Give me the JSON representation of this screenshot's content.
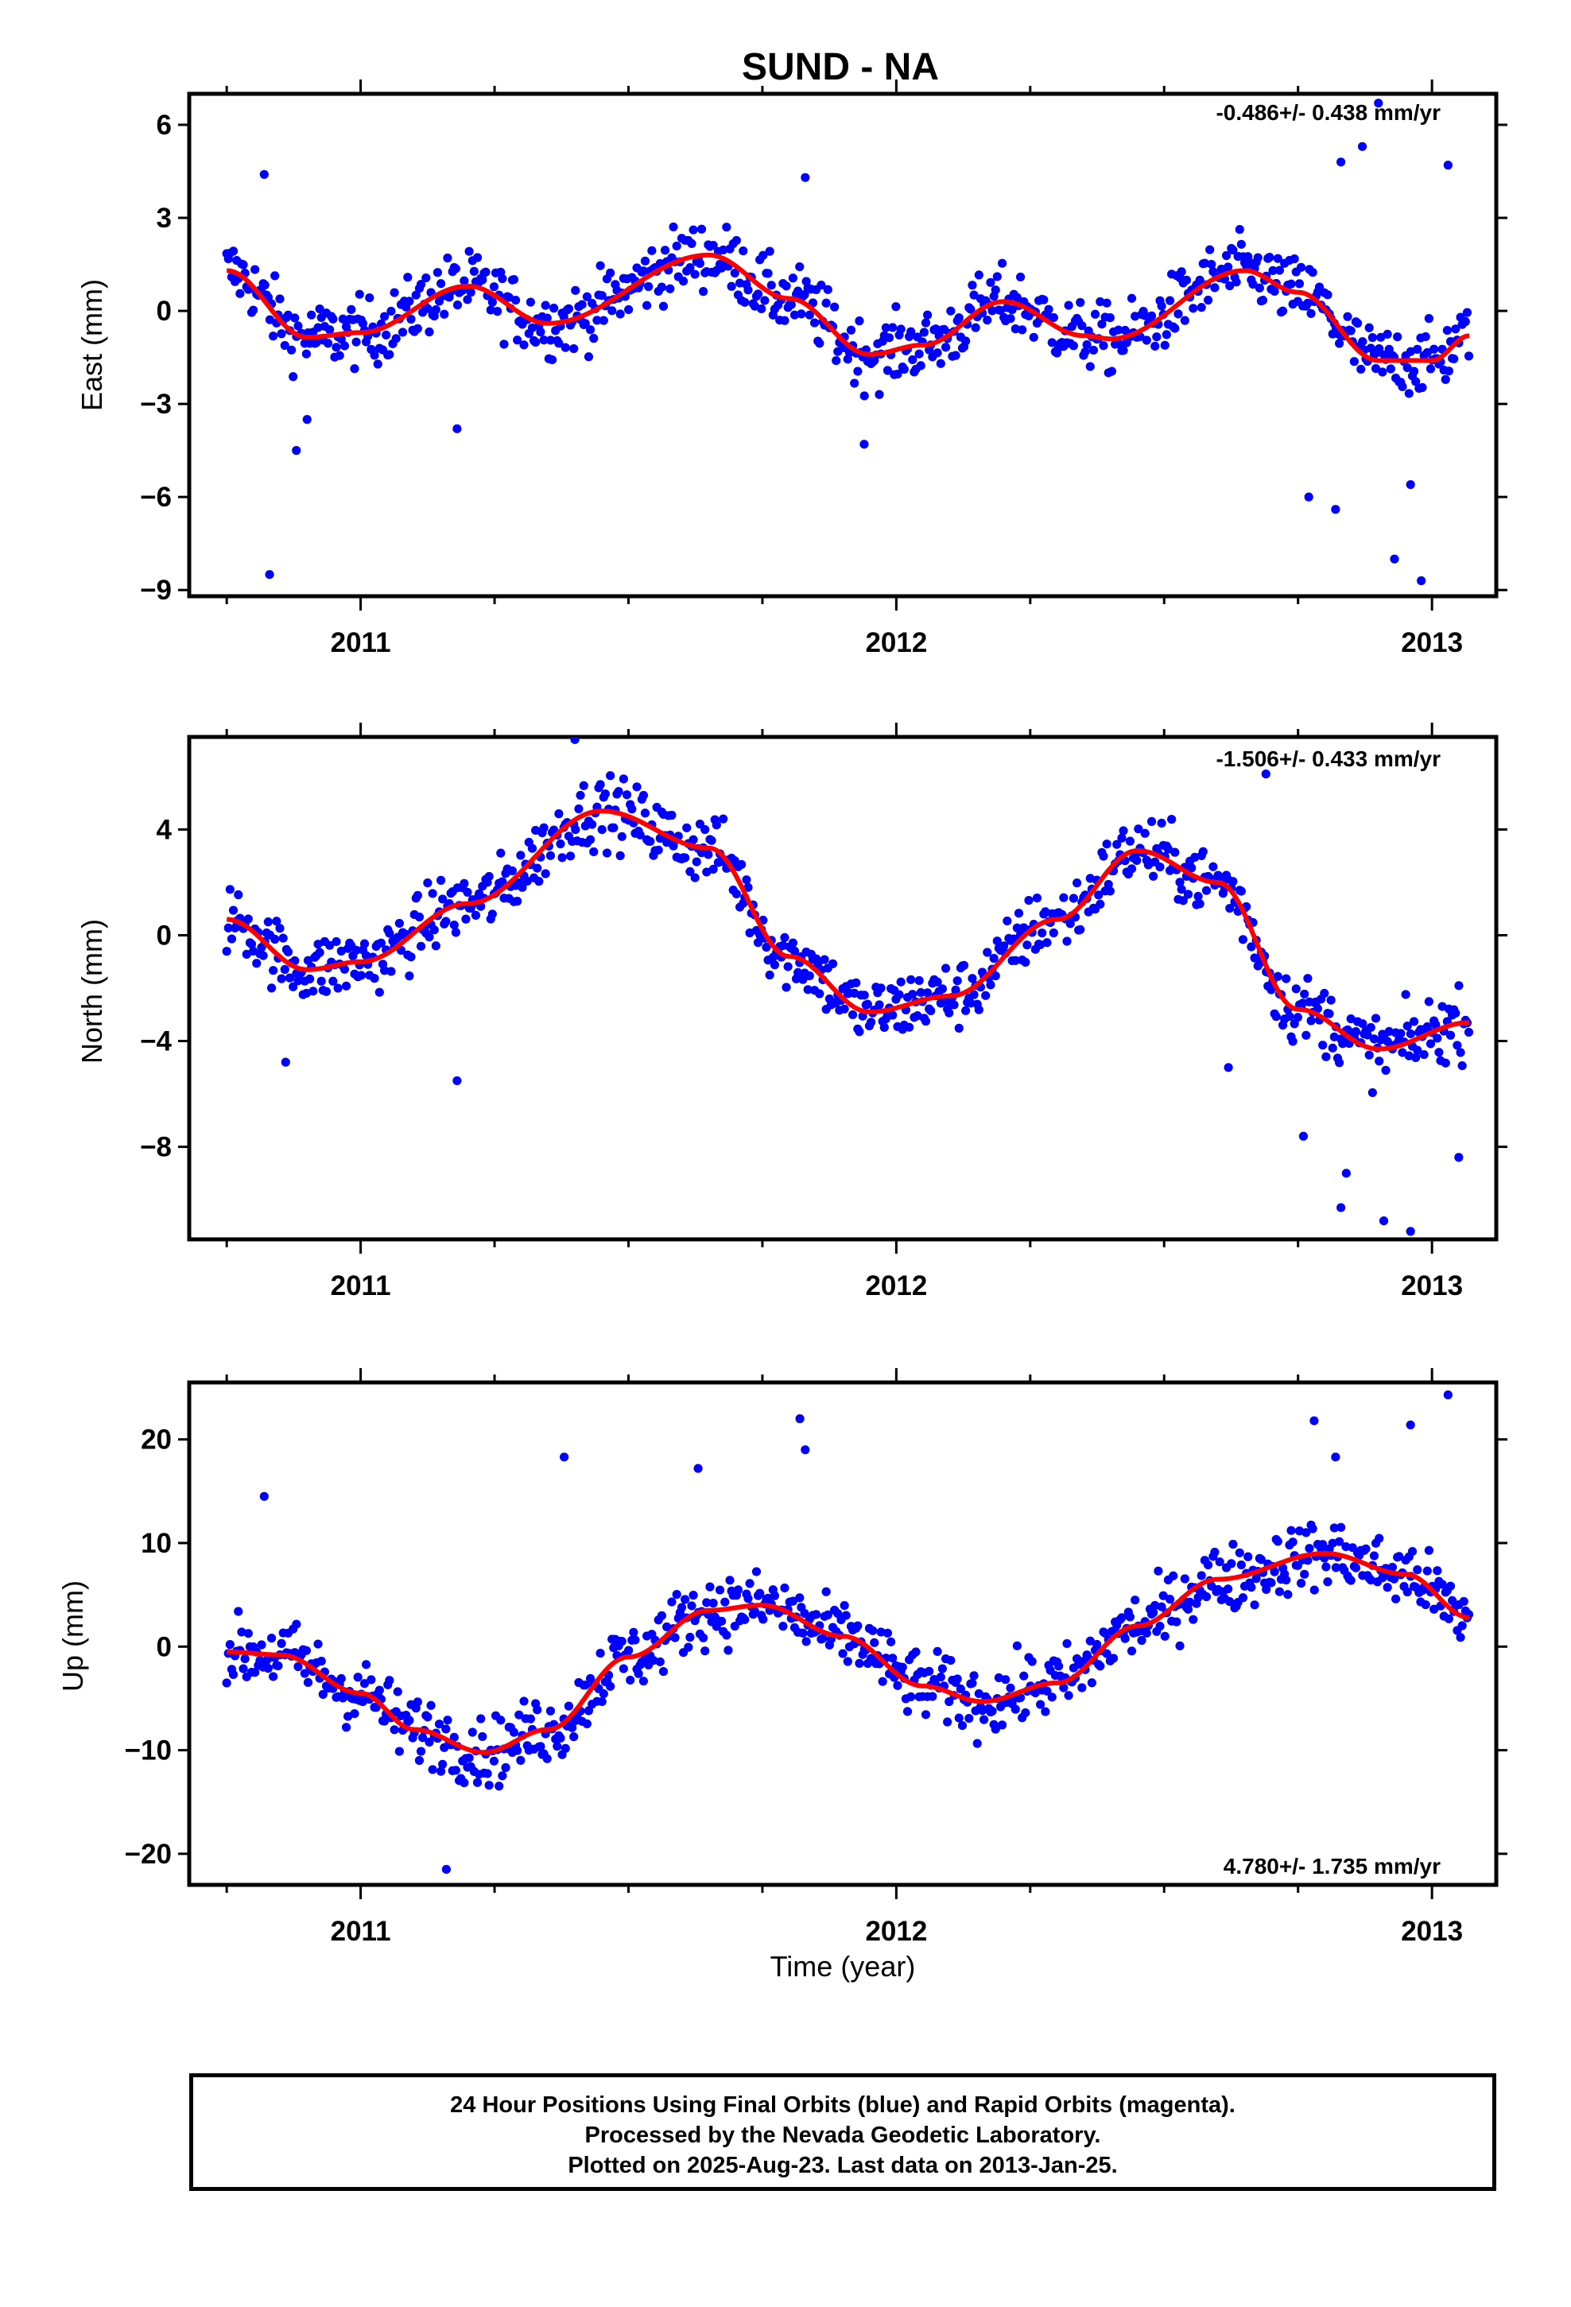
{
  "title": "SUND - NA",
  "colors": {
    "final_orbits": "#0000ff",
    "rapid_orbits": "#ff00ff",
    "fit": "#ff0000"
  },
  "footer": {
    "line1": "24 Hour Positions Using Final Orbits (blue) and Rapid Orbits (magenta).",
    "line2": "Processed by the Nevada Geodetic Laboratory.",
    "line3": "Plotted on 2025-Aug-23. Last data on 2013-Jan-25."
  },
  "chart_data": [
    {
      "type": "scatter",
      "id": "east",
      "ylabel": "East (mm)",
      "xlabel": "",
      "rate_label": "-0.486+/- 0.438 mm/yr",
      "xlim": [
        2010.68,
        2013.12
      ],
      "ylim": [
        -9.2,
        7.0
      ],
      "yticks": [
        6,
        3,
        0,
        -3,
        -6,
        -9
      ],
      "ytick_labels": [
        "6",
        "3",
        "0",
        "−3",
        "−6",
        "−9"
      ],
      "xticks": [
        2011,
        2012,
        2013
      ],
      "xtick_labels": [
        "2011",
        "2012",
        "2013"
      ],
      "data_range": [
        2010.75,
        2013.07
      ],
      "fit_curve": {
        "x": [
          2010.75,
          2010.9,
          2011.0,
          2011.2,
          2011.35,
          2011.65,
          2011.8,
          2011.95,
          2012.05,
          2012.2,
          2012.35,
          2012.4,
          2012.65,
          2012.75,
          2012.9,
          2013.0,
          2013.07
        ],
        "y": [
          1.3,
          -0.85,
          -0.7,
          0.8,
          -0.4,
          1.8,
          0.4,
          -1.4,
          -1.1,
          0.3,
          -0.8,
          -0.9,
          1.3,
          0.6,
          -1.6,
          -1.6,
          -0.8
        ]
      },
      "outliers": {
        "x": [
          2010.82,
          2010.83,
          2010.88,
          2010.9,
          2011.18,
          2011.83,
          2011.94,
          2012.77,
          2012.82,
          2012.83,
          2012.87,
          2012.9,
          2012.93,
          2012.96,
          2012.98,
          2013.03
        ],
        "y": [
          4.4,
          -8.5,
          -4.5,
          -3.5,
          -3.8,
          4.3,
          -4.3,
          -6.0,
          -6.4,
          4.8,
          5.3,
          6.7,
          -8.0,
          -5.6,
          -8.7,
          4.7
        ]
      }
    },
    {
      "type": "scatter",
      "id": "north",
      "ylabel": "North (mm)",
      "xlabel": "",
      "rate_label": "-1.506+/- 0.433 mm/yr",
      "xlim": [
        2010.68,
        2013.12
      ],
      "ylim": [
        -11.5,
        7.5
      ],
      "yticks": [
        4,
        0,
        -4,
        -8
      ],
      "ytick_labels": [
        "4",
        "0",
        "−4",
        "−8"
      ],
      "xticks": [
        2011,
        2012,
        2013
      ],
      "xtick_labels": [
        "2011",
        "2012",
        "2013"
      ],
      "data_range": [
        2010.75,
        2013.07
      ],
      "fit_curve": {
        "x": [
          2010.75,
          2010.9,
          2011.0,
          2011.2,
          2011.45,
          2011.65,
          2011.8,
          2011.95,
          2012.1,
          2012.3,
          2012.45,
          2012.6,
          2012.75,
          2012.9,
          2013.07
        ],
        "y": [
          0.6,
          -1.3,
          -1.0,
          1.2,
          4.7,
          3.3,
          -0.8,
          -2.9,
          -2.3,
          0.6,
          3.2,
          2.0,
          -2.8,
          -4.3,
          -3.3
        ]
      },
      "outliers": {
        "x": [
          2010.86,
          2011.18,
          2011.4,
          2012.62,
          2012.69,
          2012.76,
          2012.83,
          2012.84,
          2012.91,
          2012.96,
          2013.05
        ],
        "y": [
          -4.8,
          -5.5,
          7.4,
          -5.0,
          6.1,
          -7.6,
          -10.3,
          -9.0,
          -10.8,
          -11.2,
          -8.4
        ]
      }
    },
    {
      "type": "scatter",
      "id": "up",
      "ylabel": "Up (mm)",
      "xlabel": "Time (year)",
      "rate_label": "4.780+/- 1.735 mm/yr",
      "xlim": [
        2010.68,
        2013.12
      ],
      "ylim": [
        -23,
        25.5
      ],
      "yticks": [
        20,
        10,
        0,
        -10,
        -20
      ],
      "ytick_labels": [
        "20",
        "10",
        "0",
        "−10",
        "−20"
      ],
      "xticks": [
        2011,
        2012,
        2013
      ],
      "xtick_labels": [
        "2011",
        "2012",
        "2013"
      ],
      "data_range": [
        2010.75,
        2013.07
      ],
      "fit_curve": {
        "x": [
          2010.75,
          2010.85,
          2011.0,
          2011.1,
          2011.23,
          2011.35,
          2011.5,
          2011.65,
          2011.75,
          2011.9,
          2012.05,
          2012.16,
          2012.3,
          2012.45,
          2012.6,
          2012.8,
          2012.95,
          2013.07
        ],
        "y": [
          -0.5,
          -0.8,
          -4.5,
          -8.0,
          -10.2,
          -8.0,
          -1.0,
          3.5,
          4.0,
          1.0,
          -3.8,
          -5.3,
          -3.5,
          2.0,
          6.5,
          9.0,
          7.0,
          2.8
        ]
      },
      "outliers": {
        "x": [
          2010.82,
          2011.16,
          2011.38,
          2011.63,
          2011.82,
          2011.83,
          2012.78,
          2012.82,
          2012.96,
          2013.03
        ],
        "y": [
          14.5,
          -21.5,
          18.3,
          17.2,
          22.0,
          19.0,
          21.8,
          18.3,
          21.4,
          24.3
        ]
      }
    }
  ]
}
